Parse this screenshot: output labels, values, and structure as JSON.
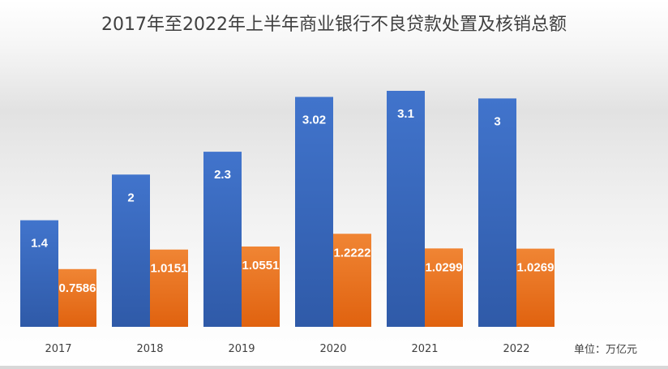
{
  "chart_data": {
    "type": "bar",
    "title": "2017年至2022年上半年商业银行不良贷款处置及核销总额",
    "categories": [
      "2017",
      "2018",
      "2019",
      "2020",
      "2021",
      "2022"
    ],
    "series": [
      {
        "values": [
          1.4,
          2,
          2.3,
          3.02,
          3.1,
          3
        ],
        "labels": [
          "1.4",
          "2",
          "2.3",
          "3.02",
          "3.1",
          "3"
        ],
        "color": "#3a6bc4"
      },
      {
        "values": [
          0.7586,
          1.0151,
          1.0551,
          1.2222,
          1.0299,
          1.0269
        ],
        "labels": [
          "0.7586",
          "1.0151",
          "1.0551",
          "1.2222",
          "1.0299",
          "1.0269"
        ],
        "color": "#ee7d2a"
      }
    ],
    "unit": "单位：万亿元",
    "ylim": [
      0,
      3.1
    ],
    "grid": false,
    "legend": "none"
  }
}
